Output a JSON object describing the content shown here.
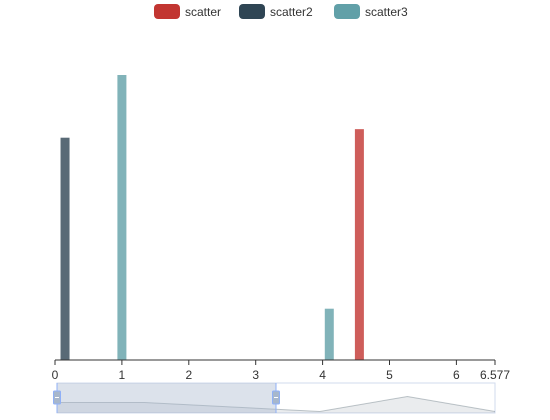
{
  "chart_data": {
    "type": "bar",
    "title": "",
    "xlabel": "",
    "ylabel": "",
    "xlim": [
      0,
      6.577
    ],
    "ylim": [
      0,
      100
    ],
    "x_ticks": [
      "0",
      "1",
      "2",
      "3",
      "4",
      "5",
      "6",
      "6.577"
    ],
    "legend_position": "top-center",
    "grid": false,
    "series": [
      {
        "name": "scatter",
        "color": "#c23531",
        "points": [
          {
            "x": 4.55,
            "y": 81
          }
        ]
      },
      {
        "name": "scatter2",
        "color": "#2f4554",
        "points": [
          {
            "x": 0.15,
            "y": 78
          }
        ]
      },
      {
        "name": "scatter3",
        "color": "#61a0a8",
        "points": [
          {
            "x": 1.0,
            "y": 100
          },
          {
            "x": 4.1,
            "y": 18
          }
        ]
      }
    ],
    "data_zoom": {
      "range": [
        0,
        0.5
      ],
      "preview_profile": [
        0.35,
        0.35,
        0.2,
        0.05,
        0.55,
        0.05
      ]
    }
  }
}
